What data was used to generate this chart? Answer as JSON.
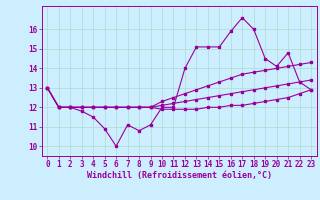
{
  "xlabel": "Windchill (Refroidissement éolien,°C)",
  "x_values": [
    0,
    1,
    2,
    3,
    4,
    5,
    6,
    7,
    8,
    9,
    10,
    11,
    12,
    13,
    14,
    15,
    16,
    17,
    18,
    19,
    20,
    21,
    22,
    23
  ],
  "line1": [
    13,
    12,
    12,
    11.8,
    11.5,
    10.9,
    10.0,
    11.1,
    10.8,
    11.1,
    12.0,
    12.0,
    14.0,
    15.1,
    15.1,
    15.1,
    15.9,
    16.6,
    16.0,
    14.5,
    14.1,
    14.8,
    13.3,
    12.9
  ],
  "line2": [
    13,
    12,
    12,
    12,
    12,
    12,
    12,
    12,
    12,
    12,
    12.3,
    12.5,
    12.7,
    12.9,
    13.1,
    13.3,
    13.5,
    13.7,
    13.8,
    13.9,
    14.0,
    14.1,
    14.2,
    14.3
  ],
  "line3": [
    13,
    12,
    12,
    12,
    12,
    12,
    12,
    12,
    12,
    12,
    12.1,
    12.2,
    12.3,
    12.4,
    12.5,
    12.6,
    12.7,
    12.8,
    12.9,
    13.0,
    13.1,
    13.2,
    13.3,
    13.4
  ],
  "line4": [
    13,
    12,
    12,
    12,
    12,
    12,
    12,
    12,
    12,
    12,
    11.9,
    11.9,
    11.9,
    11.9,
    12.0,
    12.0,
    12.1,
    12.1,
    12.2,
    12.3,
    12.4,
    12.5,
    12.7,
    12.9
  ],
  "ylim": [
    9.5,
    17.2
  ],
  "xlim": [
    -0.5,
    23.5
  ],
  "yticks": [
    10,
    11,
    12,
    13,
    14,
    15,
    16
  ],
  "xticks": [
    0,
    1,
    2,
    3,
    4,
    5,
    6,
    7,
    8,
    9,
    10,
    11,
    12,
    13,
    14,
    15,
    16,
    17,
    18,
    19,
    20,
    21,
    22,
    23
  ],
  "line_color": "#990099",
  "bg_color": "#cceeff",
  "grid_color": "#aaddcc",
  "marker": "s",
  "marker_size": 1.8,
  "linewidth": 0.8,
  "tick_fontsize": 5.5,
  "label_fontsize": 6.0
}
